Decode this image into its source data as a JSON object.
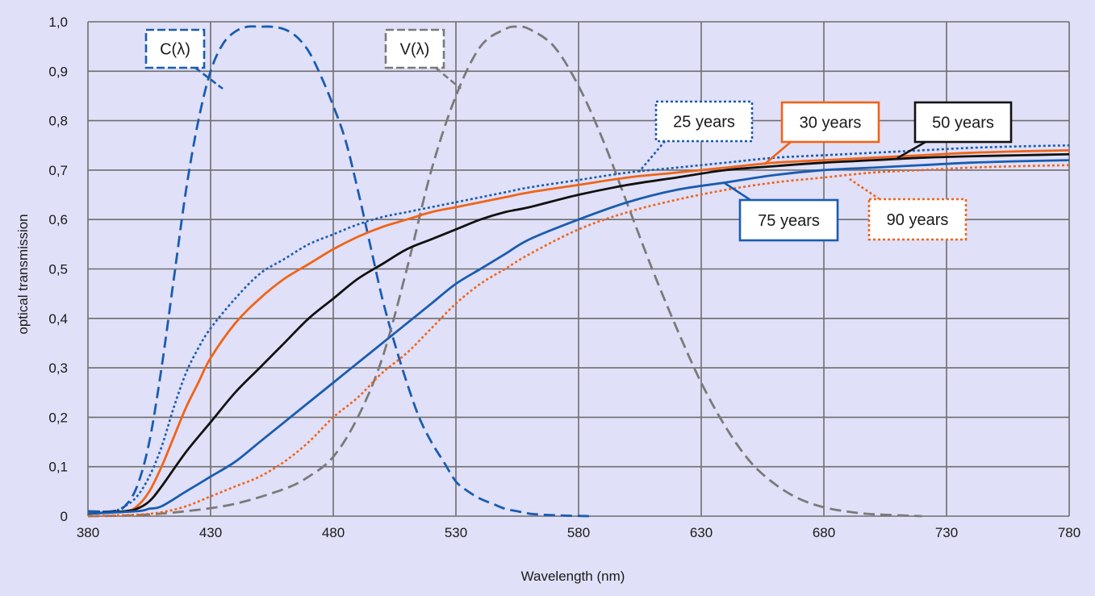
{
  "chart_data": {
    "type": "line",
    "xlabel": "Wavelength (nm)",
    "ylabel": "optical transmission",
    "xlim": [
      380,
      780
    ],
    "ylim": [
      0,
      1.0
    ],
    "x_ticks": [
      "380",
      "430",
      "480",
      "530",
      "580",
      "630",
      "680",
      "730",
      "780"
    ],
    "y_ticks": [
      "0",
      "0,1",
      "0,2",
      "0,3",
      "0,4",
      "0,5",
      "0,6",
      "0,7",
      "0,8",
      "0,9",
      "1,0"
    ],
    "grid": true,
    "series": [
      {
        "name": "C(λ)",
        "color": "#1a5cb0",
        "style": "dashed",
        "x": [
          380,
          390,
          395,
          400,
          405,
          410,
          415,
          420,
          425,
          430,
          435,
          440,
          445,
          450,
          455,
          460,
          465,
          470,
          475,
          480,
          485,
          490,
          495,
          500,
          505,
          510,
          515,
          520,
          525,
          530,
          535,
          540,
          545,
          550,
          555,
          560,
          565,
          570,
          575,
          580,
          585
        ],
        "y": [
          0.01,
          0.01,
          0.02,
          0.06,
          0.15,
          0.3,
          0.48,
          0.66,
          0.8,
          0.9,
          0.955,
          0.98,
          0.99,
          0.99,
          0.99,
          0.985,
          0.97,
          0.94,
          0.89,
          0.83,
          0.76,
          0.66,
          0.55,
          0.44,
          0.35,
          0.27,
          0.2,
          0.15,
          0.11,
          0.07,
          0.05,
          0.035,
          0.025,
          0.015,
          0.01,
          0.005,
          0.003,
          0.002,
          0.001,
          0.0005,
          0
        ]
      },
      {
        "name": "V(λ)",
        "color": "#7a7a7a",
        "style": "dashed",
        "x": [
          380,
          400,
          420,
          440,
          460,
          470,
          480,
          490,
          500,
          510,
          520,
          530,
          540,
          550,
          555,
          560,
          570,
          580,
          590,
          600,
          610,
          620,
          630,
          640,
          650,
          660,
          670,
          680,
          690,
          700,
          720
        ],
        "y": [
          0,
          0.002,
          0.01,
          0.025,
          0.055,
          0.08,
          0.12,
          0.2,
          0.32,
          0.5,
          0.7,
          0.85,
          0.95,
          0.985,
          0.99,
          0.985,
          0.95,
          0.87,
          0.76,
          0.63,
          0.5,
          0.38,
          0.27,
          0.18,
          0.11,
          0.065,
          0.035,
          0.018,
          0.009,
          0.004,
          0
        ]
      },
      {
        "name": "25 years",
        "color": "#1a5cb0",
        "style": "dotted",
        "x": [
          380,
          390,
          395,
          400,
          405,
          410,
          415,
          420,
          425,
          430,
          440,
          450,
          460,
          470,
          480,
          490,
          500,
          510,
          520,
          530,
          540,
          550,
          560,
          580,
          600,
          620,
          640,
          660,
          680,
          700,
          720,
          740,
          760,
          780
        ],
        "y": [
          0.01,
          0.01,
          0.02,
          0.04,
          0.08,
          0.14,
          0.22,
          0.29,
          0.34,
          0.38,
          0.44,
          0.49,
          0.52,
          0.55,
          0.57,
          0.59,
          0.605,
          0.615,
          0.625,
          0.635,
          0.645,
          0.655,
          0.665,
          0.68,
          0.695,
          0.705,
          0.715,
          0.725,
          0.73,
          0.735,
          0.74,
          0.745,
          0.748,
          0.75
        ]
      },
      {
        "name": "30 years",
        "color": "#f06418",
        "style": "solid",
        "x": [
          380,
          395,
          400,
          405,
          410,
          415,
          420,
          425,
          430,
          440,
          450,
          460,
          470,
          480,
          490,
          500,
          510,
          520,
          530,
          540,
          550,
          560,
          580,
          600,
          620,
          640,
          660,
          680,
          700,
          720,
          740,
          760,
          780
        ],
        "y": [
          0.005,
          0.01,
          0.02,
          0.05,
          0.1,
          0.16,
          0.22,
          0.27,
          0.32,
          0.39,
          0.44,
          0.48,
          0.51,
          0.54,
          0.565,
          0.585,
          0.6,
          0.615,
          0.625,
          0.635,
          0.645,
          0.655,
          0.67,
          0.685,
          0.695,
          0.705,
          0.715,
          0.72,
          0.725,
          0.73,
          0.735,
          0.738,
          0.74
        ]
      },
      {
        "name": "50 years",
        "color": "#111111",
        "style": "solid",
        "x": [
          380,
          395,
          400,
          405,
          410,
          420,
          430,
          440,
          450,
          460,
          470,
          480,
          490,
          500,
          510,
          520,
          530,
          540,
          550,
          560,
          580,
          600,
          620,
          640,
          660,
          680,
          700,
          720,
          740,
          760,
          780
        ],
        "y": [
          0.005,
          0.01,
          0.015,
          0.03,
          0.06,
          0.13,
          0.19,
          0.25,
          0.3,
          0.35,
          0.4,
          0.44,
          0.48,
          0.51,
          0.54,
          0.56,
          0.58,
          0.6,
          0.615,
          0.625,
          0.65,
          0.67,
          0.685,
          0.7,
          0.708,
          0.715,
          0.72,
          0.725,
          0.728,
          0.73,
          0.732
        ]
      },
      {
        "name": "75 years",
        "color": "#1a5cb0",
        "style": "solid",
        "x": [
          380,
          400,
          405,
          410,
          420,
          430,
          440,
          450,
          460,
          470,
          480,
          490,
          500,
          510,
          520,
          530,
          540,
          550,
          560,
          580,
          600,
          620,
          640,
          660,
          680,
          700,
          720,
          740,
          760,
          780
        ],
        "y": [
          0.005,
          0.01,
          0.015,
          0.02,
          0.05,
          0.08,
          0.11,
          0.15,
          0.19,
          0.23,
          0.27,
          0.31,
          0.35,
          0.39,
          0.43,
          0.47,
          0.5,
          0.53,
          0.56,
          0.6,
          0.635,
          0.66,
          0.675,
          0.69,
          0.7,
          0.705,
          0.71,
          0.715,
          0.718,
          0.72
        ]
      },
      {
        "name": "90 years",
        "color": "#f06418",
        "style": "dotted",
        "x": [
          380,
          400,
          410,
          420,
          430,
          440,
          450,
          460,
          470,
          480,
          490,
          500,
          510,
          520,
          530,
          540,
          550,
          560,
          580,
          600,
          620,
          640,
          660,
          680,
          700,
          720,
          740,
          760,
          780
        ],
        "y": [
          0,
          0.003,
          0.008,
          0.02,
          0.04,
          0.06,
          0.08,
          0.11,
          0.15,
          0.2,
          0.24,
          0.29,
          0.33,
          0.38,
          0.43,
          0.47,
          0.5,
          0.53,
          0.58,
          0.615,
          0.64,
          0.66,
          0.675,
          0.685,
          0.695,
          0.7,
          0.705,
          0.708,
          0.71
        ]
      }
    ],
    "callouts": [
      {
        "label": "C(λ)",
        "series": "C(λ)",
        "border": "dashed",
        "border_color": "#1a5cb0",
        "anchor": [
          434,
          0.86
        ]
      },
      {
        "label": "V(λ)",
        "series": "V(λ)",
        "border": "dashed",
        "border_color": "#7a7a7a",
        "anchor": [
          531,
          0.86
        ]
      },
      {
        "label": "25 years",
        "series": "25 years",
        "border": "dotted",
        "border_color": "#1a5cb0",
        "anchor": [
          605,
          0.7
        ]
      },
      {
        "label": "30 years",
        "series": "30 years",
        "border": "solid",
        "border_color": "#f06418",
        "anchor": [
          658,
          0.715
        ]
      },
      {
        "label": "50 years",
        "series": "50 years",
        "border": "solid",
        "border_color": "#111111",
        "anchor": [
          711,
          0.725
        ]
      },
      {
        "label": "75 years",
        "series": "75 years",
        "border": "solid",
        "border_color": "#1a5cb0",
        "anchor": [
          640,
          0.675
        ]
      },
      {
        "label": "90 years",
        "series": "90 years",
        "border": "dotted",
        "border_color": "#f06418",
        "anchor": [
          684,
          0.69
        ]
      }
    ]
  }
}
